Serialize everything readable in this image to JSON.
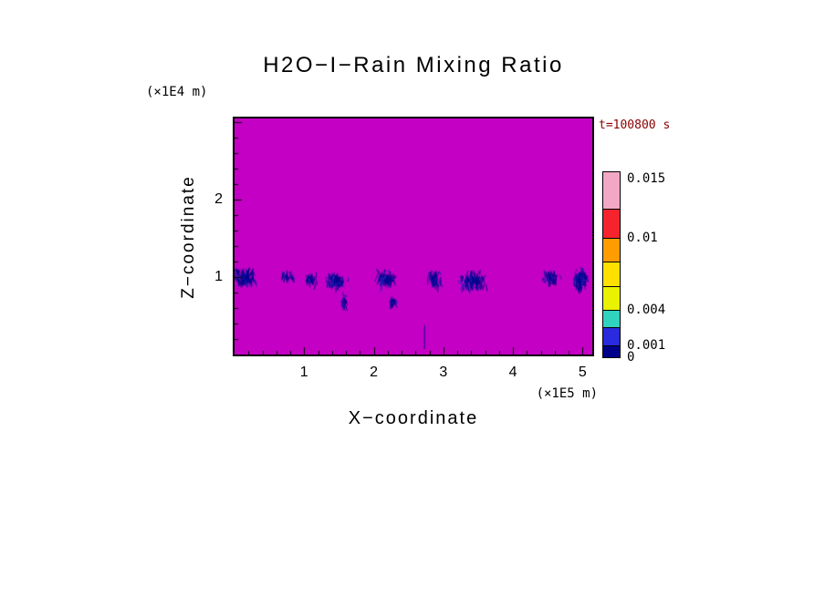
{
  "chart_data": {
    "type": "heatmap",
    "title": "H2O−I−Rain Mixing Ratio",
    "annotations": {
      "time_label": "t=100800 s",
      "time_label_color": "#8B0000"
    },
    "axes": {
      "x": {
        "label": "X−coordinate",
        "unit": "(×1E5 m)",
        "range": [
          0,
          5.14
        ],
        "major_ticks": [
          1,
          2,
          3,
          4,
          5
        ],
        "minor_tick_step": 0.2
      },
      "z": {
        "label": "Z−coordinate",
        "unit": "(×1E4 m)",
        "range": [
          0,
          3.05
        ],
        "major_ticks": [
          1,
          2
        ],
        "minor_tick_step": 0.2
      }
    },
    "field": {
      "name": "rain mixing ratio",
      "background_color": "#C400C4",
      "feature_color": "#00008B",
      "feature_color_alt": "#1C1CB4",
      "description": "uniform magenta low-value field with dark-blue rain streak clusters concentrated near z=1",
      "rain_clusters": [
        {
          "x": 0.15,
          "x_spread": 0.22,
          "z": 1.02,
          "z_spread": 0.14,
          "count": 150,
          "seed": 11
        },
        {
          "x": 0.78,
          "x_spread": 0.14,
          "z": 1.04,
          "z_spread": 0.07,
          "count": 28,
          "seed": 22
        },
        {
          "x": 1.08,
          "x_spread": 0.12,
          "z": 1.0,
          "z_spread": 0.09,
          "count": 40,
          "seed": 33
        },
        {
          "x": 1.45,
          "x_spread": 0.2,
          "z": 0.98,
          "z_spread": 0.13,
          "count": 100,
          "seed": 44
        },
        {
          "x": 1.58,
          "x_spread": 0.05,
          "z": 0.72,
          "z_spread": 0.12,
          "count": 30,
          "seed": 45
        },
        {
          "x": 2.18,
          "x_spread": 0.17,
          "z": 1.0,
          "z_spread": 0.13,
          "count": 110,
          "seed": 55
        },
        {
          "x": 2.28,
          "x_spread": 0.05,
          "z": 0.7,
          "z_spread": 0.1,
          "count": 28,
          "seed": 56
        },
        {
          "x": 2.88,
          "x_spread": 0.12,
          "z": 1.0,
          "z_spread": 0.13,
          "count": 75,
          "seed": 66
        },
        {
          "x": 3.42,
          "x_spread": 0.24,
          "z": 0.97,
          "z_spread": 0.15,
          "count": 150,
          "seed": 77
        },
        {
          "x": 4.55,
          "x_spread": 0.15,
          "z": 1.02,
          "z_spread": 0.11,
          "count": 70,
          "seed": 88
        },
        {
          "x": 4.97,
          "x_spread": 0.13,
          "z": 1.0,
          "z_spread": 0.17,
          "count": 130,
          "seed": 99
        }
      ],
      "virga_lines": [
        {
          "x": 2.73,
          "z_top": 0.38,
          "z_bottom": 0.07
        }
      ]
    },
    "colorbar": {
      "value_min": 0,
      "value_max": 0.0156,
      "levels": [
        0,
        0.001,
        0.0025,
        0.004,
        0.006,
        0.008,
        0.01,
        0.0125,
        0.0156
      ],
      "colors": [
        "#00008B",
        "#2A2ADF",
        "#2FD3BE",
        "#E9F200",
        "#FFE000",
        "#FF9C00",
        "#F5232D",
        "#F2A8C4"
      ],
      "tick_labels": [
        {
          "value": 0,
          "text": "0"
        },
        {
          "value": 0.001,
          "text": "0.001"
        },
        {
          "value": 0.004,
          "text": "0.004"
        },
        {
          "value": 0.01,
          "text": "0.01"
        },
        {
          "value": 0.015,
          "text": "0.015"
        }
      ]
    }
  }
}
